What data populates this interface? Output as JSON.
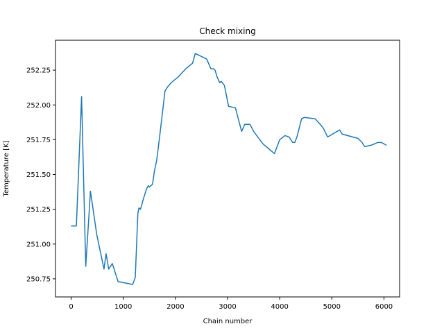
{
  "chart_data": {
    "type": "line",
    "title": "Check mixing",
    "xlabel": "Chain number",
    "ylabel": "Temperature [K]",
    "xlim": [
      -300,
      6300
    ],
    "ylim": [
      250.62,
      252.465
    ],
    "xticks": [
      0,
      1000,
      2000,
      3000,
      4000,
      5000,
      6000
    ],
    "yticks": [
      250.75,
      251.0,
      251.25,
      251.5,
      251.75,
      252.0,
      252.25
    ],
    "xtick_labels": [
      "0",
      "1000",
      "2000",
      "3000",
      "4000",
      "5000",
      "6000"
    ],
    "ytick_labels": [
      "250.75",
      "251.00",
      "251.25",
      "251.50",
      "251.75",
      "252.00",
      "252.25"
    ],
    "grid": false,
    "series": [
      {
        "color": "#1f77b4",
        "x": [
          0,
          100,
          200,
          280,
          370,
          490,
          630,
          670,
          720,
          790,
          900,
          1180,
          1230,
          1280,
          1300,
          1330,
          1390,
          1450,
          1480,
          1500,
          1560,
          1600,
          1640,
          1700,
          1800,
          1850,
          1920,
          2050,
          2200,
          2330,
          2380,
          2600,
          2680,
          2730,
          2760,
          2800,
          2850,
          2880,
          2940,
          3020,
          3150,
          3270,
          3330,
          3430,
          3500,
          3680,
          3900,
          4000,
          4100,
          4180,
          4250,
          4290,
          4330,
          4420,
          4470,
          4680,
          4800,
          4840,
          4920,
          5150,
          5200,
          5500,
          5580,
          5630,
          5750,
          5880,
          5950,
          6050
        ],
        "y": [
          251.13,
          251.13,
          252.06,
          250.84,
          251.38,
          251.07,
          250.82,
          250.93,
          250.82,
          250.86,
          250.73,
          250.71,
          250.76,
          251.22,
          251.26,
          251.25,
          251.33,
          251.4,
          251.42,
          251.41,
          251.43,
          251.53,
          251.6,
          251.78,
          252.1,
          252.13,
          252.16,
          252.2,
          252.26,
          252.3,
          252.37,
          252.33,
          252.26,
          252.26,
          252.25,
          252.2,
          252.16,
          252.17,
          252.14,
          251.99,
          251.98,
          251.81,
          251.86,
          251.86,
          251.81,
          251.72,
          251.65,
          251.75,
          251.78,
          251.77,
          251.73,
          251.73,
          251.77,
          251.9,
          251.91,
          251.9,
          251.85,
          251.83,
          251.77,
          251.82,
          251.79,
          251.76,
          251.73,
          251.7,
          251.71,
          251.73,
          251.73,
          251.71
        ]
      }
    ]
  }
}
